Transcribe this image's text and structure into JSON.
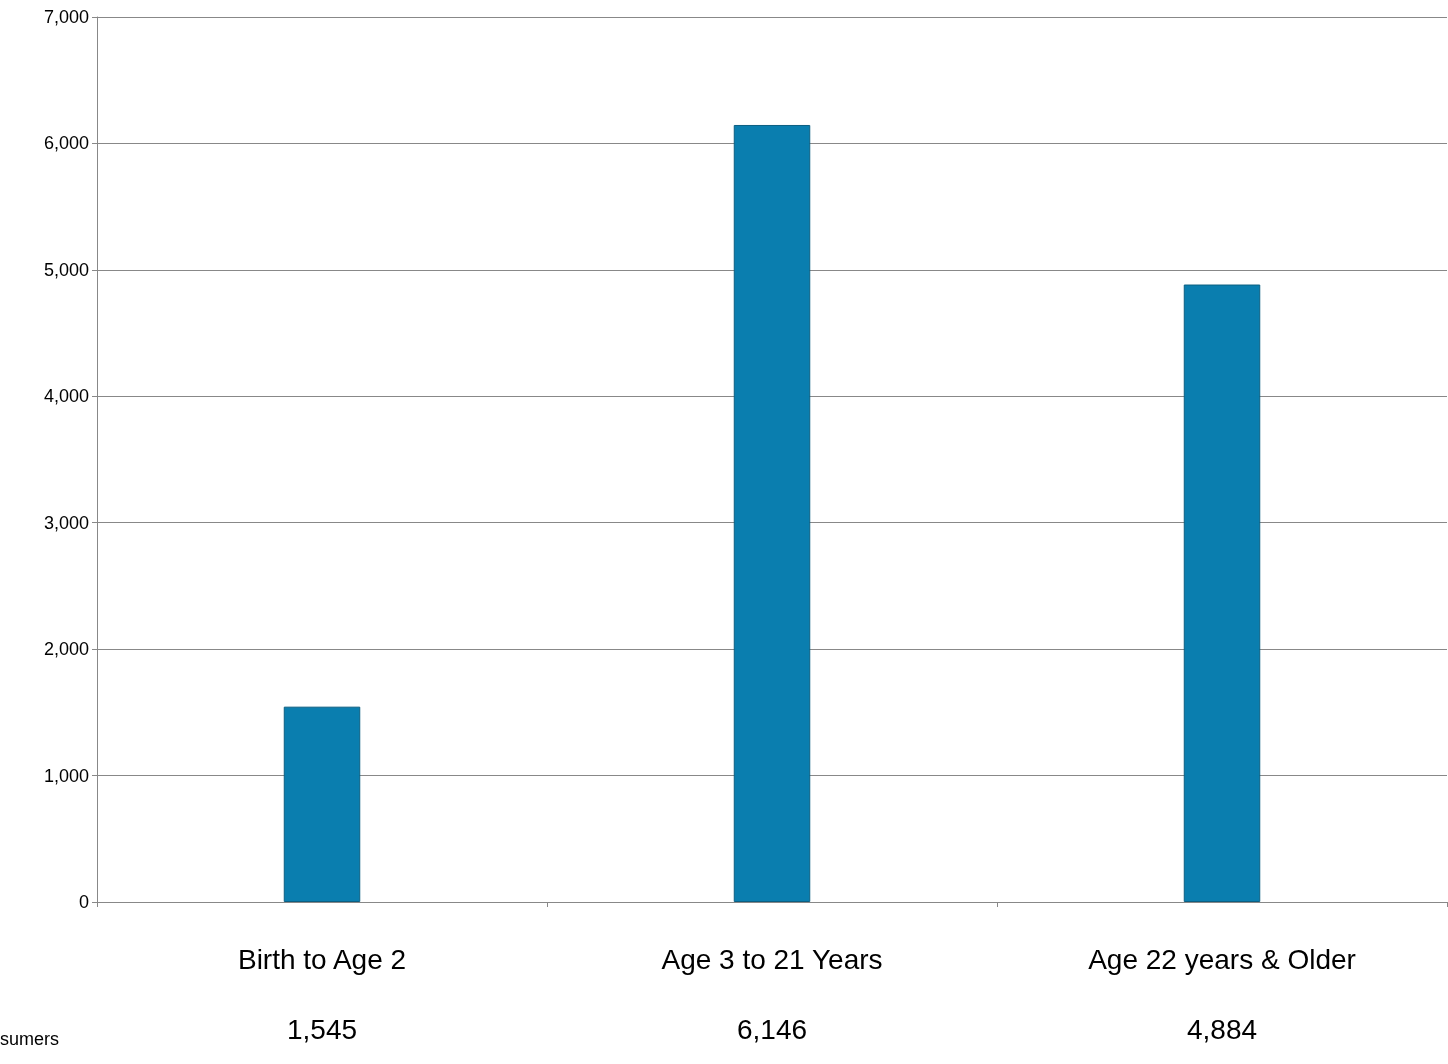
{
  "chart_data": {
    "type": "bar",
    "categories": [
      "Birth to Age 2",
      "Age 3 to 21 Years",
      "Age 22 years & Older"
    ],
    "series": [
      {
        "name": "sumers",
        "color": "#0a7eaf",
        "values": [
          1545,
          6146,
          4884
        ],
        "value_labels": [
          "1,545",
          "6,146",
          "4,884"
        ]
      }
    ],
    "ylim": [
      0,
      7000
    ],
    "yticks": [
      {
        "value": 0,
        "label": "0"
      },
      {
        "value": 1000,
        "label": "1,000"
      },
      {
        "value": 2000,
        "label": "2,000"
      },
      {
        "value": 3000,
        "label": "3,000"
      },
      {
        "value": 4000,
        "label": "4,000"
      },
      {
        "value": 5000,
        "label": "5,000"
      },
      {
        "value": 6000,
        "label": "6,000"
      },
      {
        "value": 7000,
        "label": "7,000"
      }
    ],
    "grid": "y"
  }
}
